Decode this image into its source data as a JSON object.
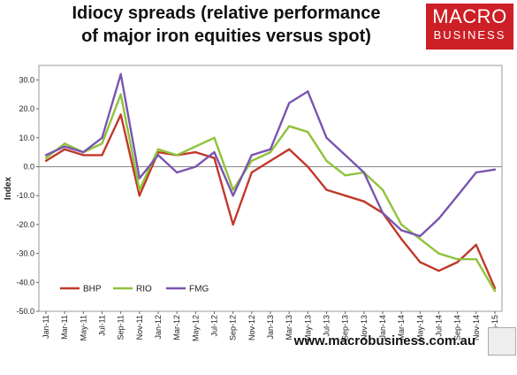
{
  "header": {
    "title_line1": "Idiocy spreads (relative performance",
    "title_line2": "of major iron equities versus spot)"
  },
  "logo": {
    "line1": "MACRO",
    "line2": "BUSINESS",
    "color": "#cc1f26"
  },
  "footer": {
    "url": "www.macrobusiness.com.au"
  },
  "chart_data": {
    "type": "line",
    "title": "Idiocy spreads (relative performance of major iron equities versus spot)",
    "ylabel": "Index",
    "ylim": [
      -50,
      35
    ],
    "yticks": [
      "30.0",
      "20.0",
      "10.0",
      "0.0",
      "-10.0",
      "-20.0",
      "-30.0",
      "-40.0",
      "-50.0"
    ],
    "ytick_values": [
      30,
      20,
      10,
      0,
      -10,
      -20,
      -30,
      -40,
      -50
    ],
    "x": [
      "Jan-11",
      "Mar-11",
      "May-11",
      "Jul-11",
      "Sep-11",
      "Nov-11",
      "Jan-12",
      "Mar-12",
      "May-12",
      "Jul-12",
      "Sep-12",
      "Nov-12",
      "Jan-13",
      "Mar-13",
      "May-13",
      "Jul-13",
      "Sep-13",
      "Nov-13",
      "Jan-14",
      "Mar-14",
      "May-14",
      "Jul-14",
      "Sep-14",
      "Nov-14",
      "Jan-15"
    ],
    "grid": false,
    "legend": "bottom-left",
    "series": [
      {
        "name": "BHP",
        "color": "#c0392b",
        "values": [
          2,
          6,
          4,
          4,
          18,
          -10,
          5,
          4,
          5,
          3,
          -20,
          -2,
          2,
          6,
          0,
          -8,
          -10,
          -12,
          -16,
          -25,
          -33,
          -36,
          -33,
          -27,
          -42
        ]
      },
      {
        "name": "RIO",
        "color": "#8fc33a",
        "values": [
          3,
          8,
          5,
          8,
          25,
          -8,
          6,
          4,
          7,
          10,
          -8,
          2,
          5,
          14,
          12,
          2,
          -3,
          -2,
          -8,
          -20,
          -25,
          -30,
          -32,
          -32,
          -43
        ]
      },
      {
        "name": "FMG",
        "color": "#7a55b0",
        "values": [
          4,
          7,
          5,
          10,
          32,
          -4,
          4,
          -2,
          0,
          5,
          -10,
          4,
          6,
          22,
          26,
          10,
          4,
          -2,
          -16,
          -22,
          -24,
          -18,
          -10,
          -2,
          -1
        ]
      }
    ]
  }
}
